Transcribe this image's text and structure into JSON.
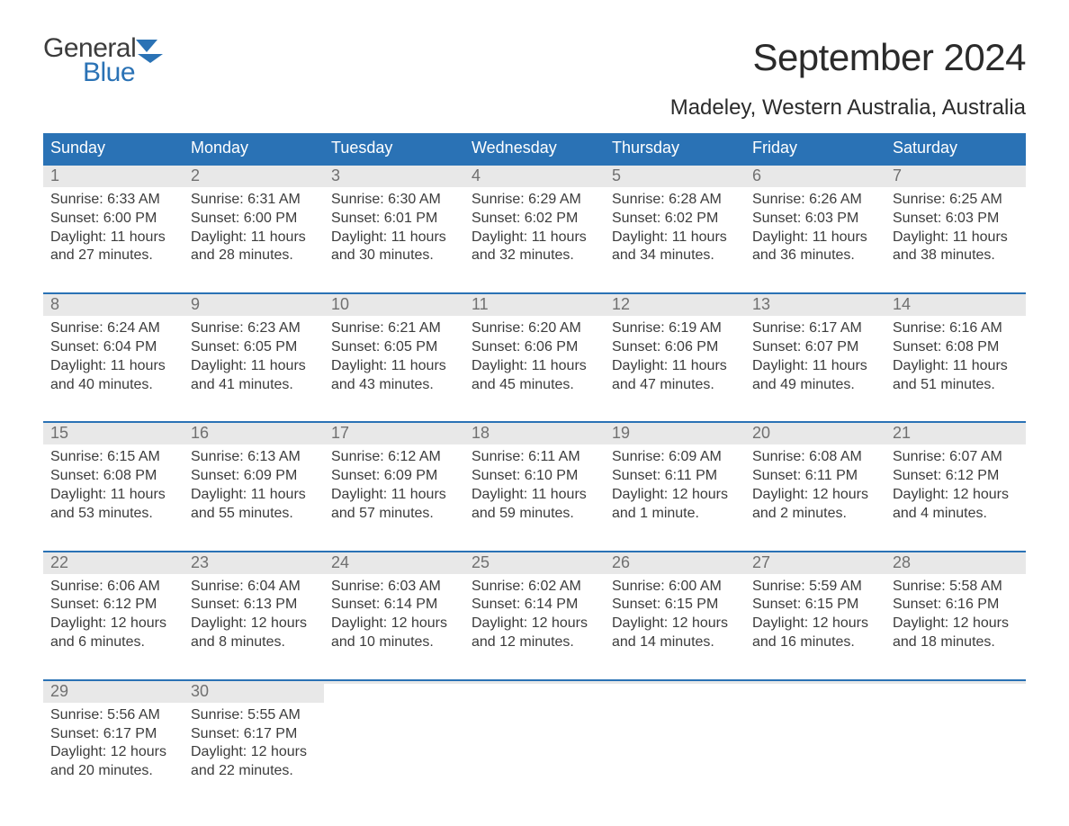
{
  "logo": {
    "general": "General",
    "blue": "Blue",
    "icon_color": "#2a72b5"
  },
  "title": "September 2024",
  "location": "Madeley, Western Australia, Australia",
  "colors": {
    "header_bg": "#2a72b5",
    "header_text": "#ffffff",
    "daynum_bg": "#e8e8e8",
    "daynum_text": "#707070",
    "body_text": "#3c3c3c",
    "week_border": "#2a72b5",
    "page_bg": "#ffffff"
  },
  "typography": {
    "title_fontsize": 42,
    "location_fontsize": 24,
    "header_fontsize": 18,
    "daynum_fontsize": 18,
    "body_fontsize": 16,
    "logo_fontsize": 30
  },
  "day_headers": [
    "Sunday",
    "Monday",
    "Tuesday",
    "Wednesday",
    "Thursday",
    "Friday",
    "Saturday"
  ],
  "weeks": [
    [
      {
        "n": "1",
        "sunrise": "Sunrise: 6:33 AM",
        "sunset": "Sunset: 6:00 PM",
        "d1": "Daylight: 11 hours",
        "d2": "and 27 minutes."
      },
      {
        "n": "2",
        "sunrise": "Sunrise: 6:31 AM",
        "sunset": "Sunset: 6:00 PM",
        "d1": "Daylight: 11 hours",
        "d2": "and 28 minutes."
      },
      {
        "n": "3",
        "sunrise": "Sunrise: 6:30 AM",
        "sunset": "Sunset: 6:01 PM",
        "d1": "Daylight: 11 hours",
        "d2": "and 30 minutes."
      },
      {
        "n": "4",
        "sunrise": "Sunrise: 6:29 AM",
        "sunset": "Sunset: 6:02 PM",
        "d1": "Daylight: 11 hours",
        "d2": "and 32 minutes."
      },
      {
        "n": "5",
        "sunrise": "Sunrise: 6:28 AM",
        "sunset": "Sunset: 6:02 PM",
        "d1": "Daylight: 11 hours",
        "d2": "and 34 minutes."
      },
      {
        "n": "6",
        "sunrise": "Sunrise: 6:26 AM",
        "sunset": "Sunset: 6:03 PM",
        "d1": "Daylight: 11 hours",
        "d2": "and 36 minutes."
      },
      {
        "n": "7",
        "sunrise": "Sunrise: 6:25 AM",
        "sunset": "Sunset: 6:03 PM",
        "d1": "Daylight: 11 hours",
        "d2": "and 38 minutes."
      }
    ],
    [
      {
        "n": "8",
        "sunrise": "Sunrise: 6:24 AM",
        "sunset": "Sunset: 6:04 PM",
        "d1": "Daylight: 11 hours",
        "d2": "and 40 minutes."
      },
      {
        "n": "9",
        "sunrise": "Sunrise: 6:23 AM",
        "sunset": "Sunset: 6:05 PM",
        "d1": "Daylight: 11 hours",
        "d2": "and 41 minutes."
      },
      {
        "n": "10",
        "sunrise": "Sunrise: 6:21 AM",
        "sunset": "Sunset: 6:05 PM",
        "d1": "Daylight: 11 hours",
        "d2": "and 43 minutes."
      },
      {
        "n": "11",
        "sunrise": "Sunrise: 6:20 AM",
        "sunset": "Sunset: 6:06 PM",
        "d1": "Daylight: 11 hours",
        "d2": "and 45 minutes."
      },
      {
        "n": "12",
        "sunrise": "Sunrise: 6:19 AM",
        "sunset": "Sunset: 6:06 PM",
        "d1": "Daylight: 11 hours",
        "d2": "and 47 minutes."
      },
      {
        "n": "13",
        "sunrise": "Sunrise: 6:17 AM",
        "sunset": "Sunset: 6:07 PM",
        "d1": "Daylight: 11 hours",
        "d2": "and 49 minutes."
      },
      {
        "n": "14",
        "sunrise": "Sunrise: 6:16 AM",
        "sunset": "Sunset: 6:08 PM",
        "d1": "Daylight: 11 hours",
        "d2": "and 51 minutes."
      }
    ],
    [
      {
        "n": "15",
        "sunrise": "Sunrise: 6:15 AM",
        "sunset": "Sunset: 6:08 PM",
        "d1": "Daylight: 11 hours",
        "d2": "and 53 minutes."
      },
      {
        "n": "16",
        "sunrise": "Sunrise: 6:13 AM",
        "sunset": "Sunset: 6:09 PM",
        "d1": "Daylight: 11 hours",
        "d2": "and 55 minutes."
      },
      {
        "n": "17",
        "sunrise": "Sunrise: 6:12 AM",
        "sunset": "Sunset: 6:09 PM",
        "d1": "Daylight: 11 hours",
        "d2": "and 57 minutes."
      },
      {
        "n": "18",
        "sunrise": "Sunrise: 6:11 AM",
        "sunset": "Sunset: 6:10 PM",
        "d1": "Daylight: 11 hours",
        "d2": "and 59 minutes."
      },
      {
        "n": "19",
        "sunrise": "Sunrise: 6:09 AM",
        "sunset": "Sunset: 6:11 PM",
        "d1": "Daylight: 12 hours",
        "d2": "and 1 minute."
      },
      {
        "n": "20",
        "sunrise": "Sunrise: 6:08 AM",
        "sunset": "Sunset: 6:11 PM",
        "d1": "Daylight: 12 hours",
        "d2": "and 2 minutes."
      },
      {
        "n": "21",
        "sunrise": "Sunrise: 6:07 AM",
        "sunset": "Sunset: 6:12 PM",
        "d1": "Daylight: 12 hours",
        "d2": "and 4 minutes."
      }
    ],
    [
      {
        "n": "22",
        "sunrise": "Sunrise: 6:06 AM",
        "sunset": "Sunset: 6:12 PM",
        "d1": "Daylight: 12 hours",
        "d2": "and 6 minutes."
      },
      {
        "n": "23",
        "sunrise": "Sunrise: 6:04 AM",
        "sunset": "Sunset: 6:13 PM",
        "d1": "Daylight: 12 hours",
        "d2": "and 8 minutes."
      },
      {
        "n": "24",
        "sunrise": "Sunrise: 6:03 AM",
        "sunset": "Sunset: 6:14 PM",
        "d1": "Daylight: 12 hours",
        "d2": "and 10 minutes."
      },
      {
        "n": "25",
        "sunrise": "Sunrise: 6:02 AM",
        "sunset": "Sunset: 6:14 PM",
        "d1": "Daylight: 12 hours",
        "d2": "and 12 minutes."
      },
      {
        "n": "26",
        "sunrise": "Sunrise: 6:00 AM",
        "sunset": "Sunset: 6:15 PM",
        "d1": "Daylight: 12 hours",
        "d2": "and 14 minutes."
      },
      {
        "n": "27",
        "sunrise": "Sunrise: 5:59 AM",
        "sunset": "Sunset: 6:15 PM",
        "d1": "Daylight: 12 hours",
        "d2": "and 16 minutes."
      },
      {
        "n": "28",
        "sunrise": "Sunrise: 5:58 AM",
        "sunset": "Sunset: 6:16 PM",
        "d1": "Daylight: 12 hours",
        "d2": "and 18 minutes."
      }
    ],
    [
      {
        "n": "29",
        "sunrise": "Sunrise: 5:56 AM",
        "sunset": "Sunset: 6:17 PM",
        "d1": "Daylight: 12 hours",
        "d2": "and 20 minutes."
      },
      {
        "n": "30",
        "sunrise": "Sunrise: 5:55 AM",
        "sunset": "Sunset: 6:17 PM",
        "d1": "Daylight: 12 hours",
        "d2": "and 22 minutes."
      },
      {
        "empty": true
      },
      {
        "empty": true
      },
      {
        "empty": true
      },
      {
        "empty": true
      },
      {
        "empty": true
      }
    ]
  ]
}
